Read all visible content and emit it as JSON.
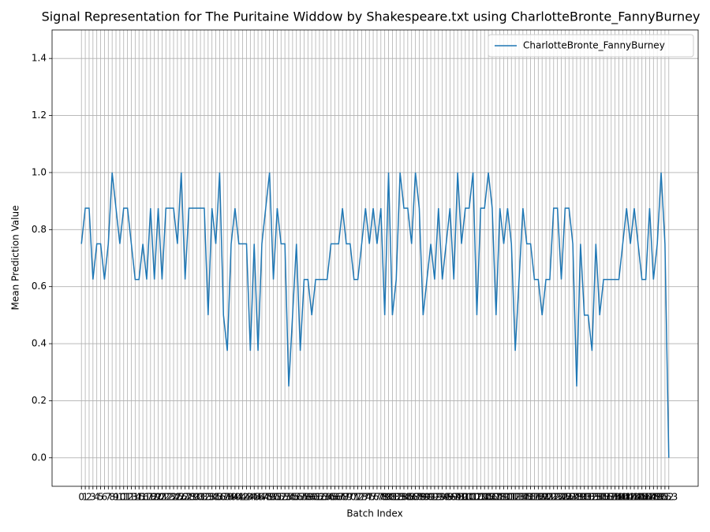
{
  "chart_data": {
    "type": "line",
    "title": "Signal Representation for The Puritaine Widdow by Shakespeare.txt using CharlotteBronte_FannyBurney",
    "x_label": "Batch Index",
    "y_label": "Mean Prediction Value",
    "x": [
      0,
      1,
      2,
      3,
      4,
      5,
      6,
      7,
      8,
      9,
      10,
      11,
      12,
      13,
      14,
      15,
      16,
      17,
      18,
      19,
      20,
      21,
      22,
      23,
      24,
      25,
      26,
      27,
      28,
      29,
      30,
      31,
      32,
      33,
      34,
      35,
      36,
      37,
      38,
      39,
      40,
      41,
      42,
      43,
      44,
      45,
      46,
      47,
      48,
      49,
      50,
      51,
      52,
      53,
      54,
      55,
      56,
      57,
      58,
      59,
      60,
      61,
      62,
      63,
      64,
      65,
      66,
      67,
      68,
      69,
      70,
      71,
      72,
      73,
      74,
      75,
      76,
      77,
      78,
      79,
      80,
      81,
      82,
      83,
      84,
      85,
      86,
      87,
      88,
      89,
      90,
      91,
      92,
      93,
      94,
      95,
      96,
      97,
      98,
      99,
      100,
      101,
      102,
      103,
      104,
      105,
      106,
      107,
      108,
      109,
      110,
      111,
      112,
      113,
      114,
      115,
      116,
      117,
      118,
      119,
      120,
      121,
      122,
      123,
      124,
      125,
      126,
      127,
      128,
      129,
      130,
      131,
      132,
      133,
      134,
      135,
      136,
      137,
      138,
      139,
      140,
      141,
      142,
      143,
      144,
      145,
      146,
      147,
      148,
      149,
      150,
      151,
      152,
      153
    ],
    "series": [
      {
        "name": "CharlotteBronte_FannyBurney",
        "color": "#1f77b4",
        "values": [
          0.75,
          0.875,
          0.875,
          0.625,
          0.75,
          0.75,
          0.625,
          0.75,
          1.0,
          0.875,
          0.75,
          0.875,
          0.875,
          0.75,
          0.625,
          0.625,
          0.75,
          0.625,
          0.875,
          0.625,
          0.875,
          0.625,
          0.875,
          0.875,
          0.875,
          0.75,
          1.0,
          0.625,
          0.875,
          0.875,
          0.875,
          0.875,
          0.875,
          0.5,
          0.875,
          0.75,
          1.0,
          0.5,
          0.375,
          0.75,
          0.875,
          0.75,
          0.75,
          0.75,
          0.375,
          0.75,
          0.375,
          0.75,
          0.875,
          1.0,
          0.625,
          0.875,
          0.75,
          0.75,
          0.25,
          0.5,
          0.75,
          0.375,
          0.625,
          0.625,
          0.5,
          0.625,
          0.625,
          0.625,
          0.625,
          0.75,
          0.75,
          0.75,
          0.875,
          0.75,
          0.75,
          0.625,
          0.625,
          0.75,
          0.875,
          0.75,
          0.875,
          0.75,
          0.875,
          0.5,
          1.0,
          0.5,
          0.625,
          1.0,
          0.875,
          0.875,
          0.75,
          1.0,
          0.875,
          0.5,
          0.625,
          0.75,
          0.625,
          0.875,
          0.625,
          0.75,
          0.875,
          0.625,
          1.0,
          0.75,
          0.875,
          0.875,
          1.0,
          0.5,
          0.875,
          0.875,
          1.0,
          0.875,
          0.5,
          0.875,
          0.75,
          0.875,
          0.75,
          0.375,
          0.625,
          0.875,
          0.75,
          0.75,
          0.625,
          0.625,
          0.5,
          0.625,
          0.625,
          0.875,
          0.875,
          0.625,
          0.875,
          0.875,
          0.75,
          0.25,
          0.75,
          0.5,
          0.5,
          0.375,
          0.75,
          0.5,
          0.625,
          0.625,
          0.625,
          0.625,
          0.625,
          0.75,
          0.875,
          0.75,
          0.875,
          0.75,
          0.625,
          0.625,
          0.875,
          0.625,
          0.75,
          1.0,
          0.75,
          0.0
        ]
      }
    ],
    "xlim": [
      -7.65,
      160.65
    ],
    "xticks": [
      0,
      1,
      2,
      3,
      4,
      5,
      6,
      7,
      8,
      9,
      10,
      11,
      12,
      13,
      14,
      15,
      16,
      17,
      18,
      19,
      20,
      21,
      22,
      23,
      24,
      25,
      26,
      27,
      28,
      29,
      30,
      31,
      32,
      33,
      34,
      35,
      36,
      37,
      38,
      39,
      40,
      41,
      42,
      43,
      44,
      45,
      46,
      47,
      48,
      49,
      50,
      51,
      52,
      53,
      54,
      55,
      56,
      57,
      58,
      59,
      60,
      61,
      62,
      63,
      64,
      65,
      66,
      67,
      68,
      69,
      70,
      71,
      72,
      73,
      74,
      75,
      76,
      77,
      78,
      79,
      80,
      81,
      82,
      83,
      84,
      85,
      86,
      87,
      88,
      89,
      90,
      91,
      92,
      93,
      94,
      95,
      96,
      97,
      98,
      99,
      100,
      101,
      102,
      103,
      104,
      105,
      106,
      107,
      108,
      109,
      110,
      111,
      112,
      113,
      114,
      115,
      116,
      117,
      118,
      119,
      120,
      121,
      122,
      123,
      124,
      125,
      126,
      127,
      128,
      129,
      130,
      131,
      132,
      133,
      134,
      135,
      136,
      137,
      138,
      139,
      140,
      141,
      142,
      143,
      144,
      145,
      146,
      147,
      148,
      149,
      150,
      151,
      152,
      153
    ],
    "ylim": [
      -0.1,
      1.5
    ],
    "yticks": [
      {
        "value": 0,
        "label": "0.0"
      },
      0.2,
      0.4,
      0.6,
      0.8,
      {
        "value": 1,
        "label": "1.0"
      },
      1.2,
      1.4
    ],
    "grid": true,
    "legend": "upper right"
  }
}
